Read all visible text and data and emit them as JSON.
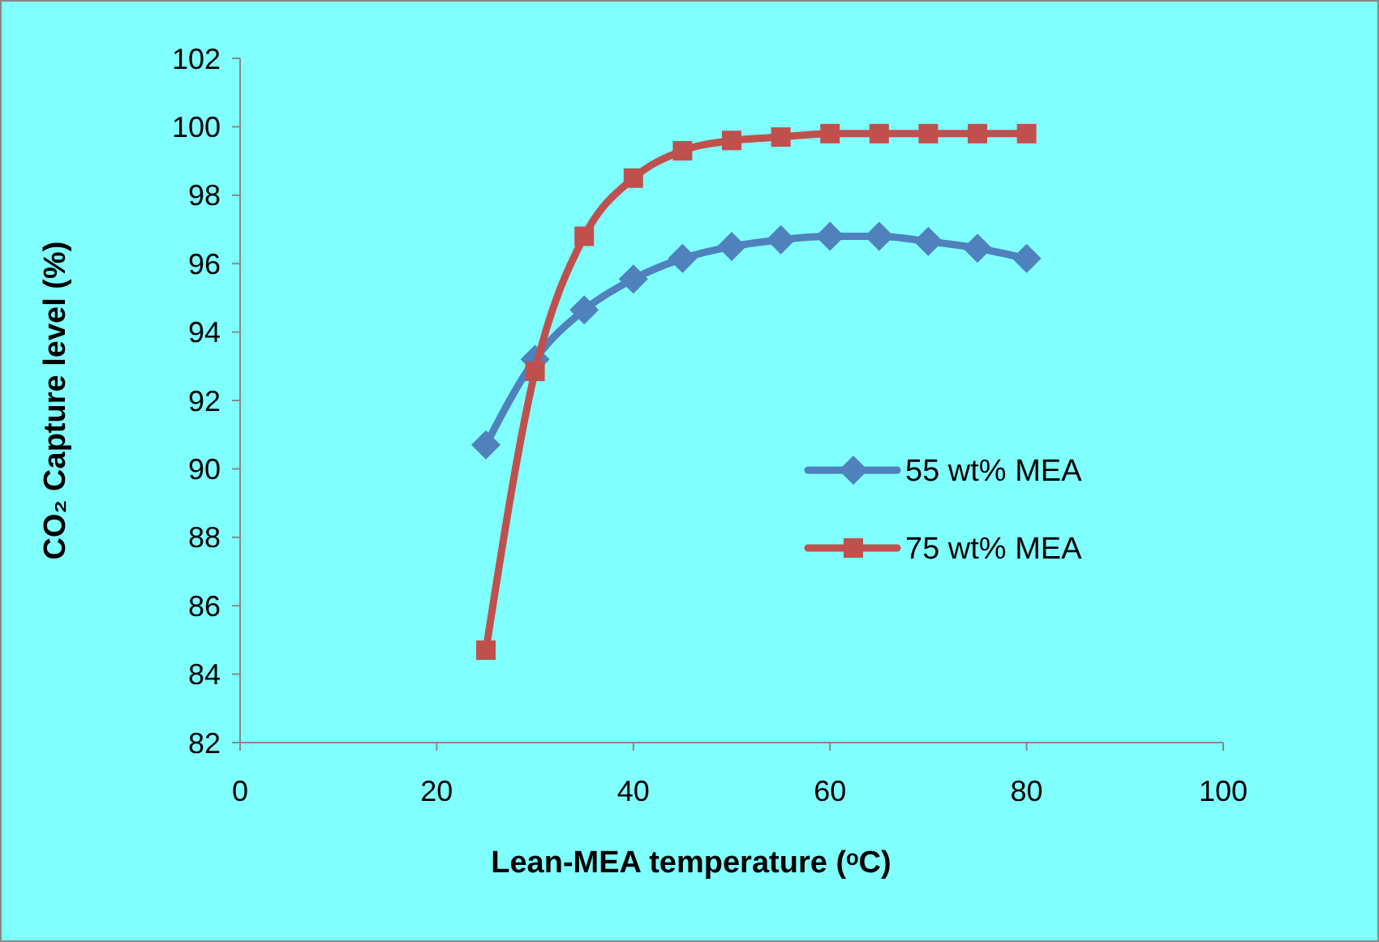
{
  "chart_data": {
    "type": "line",
    "xlabel": "Lean-MEA temperature (ᵒC)",
    "ylabel": "CO₂ Capture level (%)",
    "x": [
      25,
      30,
      35,
      40,
      45,
      50,
      55,
      60,
      65,
      70,
      75,
      80
    ],
    "series": [
      {
        "name": "55 wt% MEA",
        "color": "#4f81bd",
        "marker": "diamond",
        "values": [
          90.7,
          93.2,
          94.65,
          95.55,
          96.15,
          96.5,
          96.7,
          96.8,
          96.8,
          96.65,
          96.45,
          96.15
        ]
      },
      {
        "name": "75 wt% MEA",
        "color": "#c0504d",
        "marker": "square",
        "values": [
          84.7,
          92.85,
          96.8,
          98.5,
          99.3,
          99.6,
          99.7,
          99.8,
          99.8,
          99.8,
          99.8,
          99.8
        ]
      }
    ],
    "xlim": [
      0,
      100
    ],
    "xticks": [
      0,
      20,
      40,
      60,
      80,
      100
    ],
    "ylim": [
      82,
      102
    ],
    "yticks": [
      82,
      84,
      86,
      88,
      90,
      92,
      94,
      96,
      98,
      100,
      102
    ],
    "grid": false,
    "legend": "right",
    "line_style": "solid"
  }
}
